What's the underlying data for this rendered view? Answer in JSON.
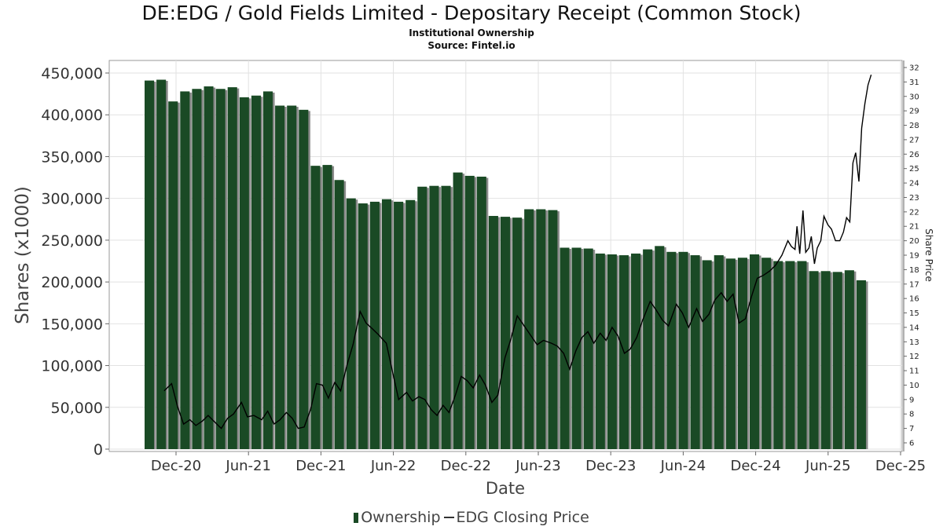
{
  "title": "DE:EDG / Gold Fields Limited - Depositary Receipt (Common Stock)",
  "subtitle": "Institutional Ownership",
  "source": "Source: Fintel.io",
  "legend": {
    "bars": "Ownership",
    "line": "EDG Closing Price"
  },
  "colors": {
    "bar": "#1a4a25",
    "bar_shadow": "#8a8a8a",
    "line": "#000000",
    "grid": "#e2e2e2"
  },
  "chart_data": {
    "type": "bar",
    "xlabel": "Date",
    "ylabel": "Shares (x1000)",
    "y2label": "Share Price",
    "ylim": [
      0,
      470000
    ],
    "y2lim": [
      5.6,
      32.4
    ],
    "yticks": [
      0,
      50000,
      100000,
      150000,
      200000,
      250000,
      300000,
      350000,
      400000,
      450000
    ],
    "ytick_labels": [
      "0",
      "50,000",
      "100,000",
      "150,000",
      "200,000",
      "250,000",
      "300,000",
      "350,000",
      "400,000",
      "450,000"
    ],
    "y2ticks": [
      6,
      7,
      8,
      9,
      10,
      11,
      12,
      13,
      14,
      15,
      16,
      17,
      18,
      19,
      20,
      21,
      22,
      23,
      24,
      25,
      26,
      27,
      28,
      29,
      30,
      31,
      32
    ],
    "xticks": [
      "Dec-20",
      "Jun-21",
      "Dec-21",
      "Jun-22",
      "Dec-22",
      "Jun-23",
      "Dec-23",
      "Jun-24",
      "Dec-24",
      "Jun-25",
      "Dec-25"
    ],
    "grid": true,
    "legend_position": "bottom",
    "ownership": [
      441000,
      442000,
      416000,
      428000,
      431000,
      434000,
      431000,
      433000,
      421000,
      423000,
      428000,
      411000,
      411000,
      406000,
      339000,
      340000,
      322000,
      300000,
      294000,
      296000,
      299000,
      296000,
      298000,
      314000,
      315000,
      315000,
      331000,
      327000,
      326000,
      279000,
      278000,
      277000,
      287000,
      287000,
      286000,
      241000,
      241000,
      240000,
      234000,
      233000,
      232000,
      234000,
      239000,
      243000,
      236000,
      236000,
      232000,
      226000,
      232000,
      228000,
      229000,
      233000,
      229000,
      225000,
      225000,
      225000,
      213000,
      213000,
      212000,
      214000,
      202000
    ],
    "price": [
      {
        "x": "2020-11-01",
        "y": 9.6
      },
      {
        "x": "2020-11-20",
        "y": 10.1
      },
      {
        "x": "2020-12-05",
        "y": 8.5
      },
      {
        "x": "2020-12-20",
        "y": 7.3
      },
      {
        "x": "2021-01-05",
        "y": 7.6
      },
      {
        "x": "2021-01-20",
        "y": 7.2
      },
      {
        "x": "2021-02-05",
        "y": 7.5
      },
      {
        "x": "2021-02-20",
        "y": 7.9
      },
      {
        "x": "2021-03-10",
        "y": 7.4
      },
      {
        "x": "2021-03-25",
        "y": 7.0
      },
      {
        "x": "2021-04-10",
        "y": 7.7
      },
      {
        "x": "2021-04-25",
        "y": 8.0
      },
      {
        "x": "2021-05-15",
        "y": 8.8
      },
      {
        "x": "2021-05-30",
        "y": 7.8
      },
      {
        "x": "2021-06-15",
        "y": 7.9
      },
      {
        "x": "2021-07-05",
        "y": 7.6
      },
      {
        "x": "2021-07-20",
        "y": 8.2
      },
      {
        "x": "2021-08-05",
        "y": 7.3
      },
      {
        "x": "2021-08-20",
        "y": 7.6
      },
      {
        "x": "2021-09-05",
        "y": 8.1
      },
      {
        "x": "2021-09-20",
        "y": 7.7
      },
      {
        "x": "2021-10-05",
        "y": 7.0
      },
      {
        "x": "2021-10-20",
        "y": 7.1
      },
      {
        "x": "2021-11-05",
        "y": 8.3
      },
      {
        "x": "2021-11-20",
        "y": 10.1
      },
      {
        "x": "2021-12-05",
        "y": 10.0
      },
      {
        "x": "2021-12-20",
        "y": 9.1
      },
      {
        "x": "2022-01-05",
        "y": 10.2
      },
      {
        "x": "2022-01-20",
        "y": 9.6
      },
      {
        "x": "2022-02-05",
        "y": 11.4
      },
      {
        "x": "2022-02-20",
        "y": 12.8
      },
      {
        "x": "2022-03-10",
        "y": 15.1
      },
      {
        "x": "2022-03-25",
        "y": 14.3
      },
      {
        "x": "2022-04-10",
        "y": 13.9
      },
      {
        "x": "2022-04-25",
        "y": 13.5
      },
      {
        "x": "2022-05-15",
        "y": 12.9
      },
      {
        "x": "2022-05-30",
        "y": 11.0
      },
      {
        "x": "2022-06-15",
        "y": 9.0
      },
      {
        "x": "2022-07-05",
        "y": 9.5
      },
      {
        "x": "2022-07-20",
        "y": 8.9
      },
      {
        "x": "2022-08-05",
        "y": 9.2
      },
      {
        "x": "2022-08-20",
        "y": 9.0
      },
      {
        "x": "2022-09-05",
        "y": 8.3
      },
      {
        "x": "2022-09-20",
        "y": 7.9
      },
      {
        "x": "2022-10-05",
        "y": 8.6
      },
      {
        "x": "2022-10-20",
        "y": 8.1
      },
      {
        "x": "2022-11-05",
        "y": 9.3
      },
      {
        "x": "2022-11-20",
        "y": 10.6
      },
      {
        "x": "2022-12-05",
        "y": 10.3
      },
      {
        "x": "2022-12-20",
        "y": 9.8
      },
      {
        "x": "2023-01-05",
        "y": 10.7
      },
      {
        "x": "2023-01-20",
        "y": 10.0
      },
      {
        "x": "2023-02-05",
        "y": 8.8
      },
      {
        "x": "2023-02-20",
        "y": 9.3
      },
      {
        "x": "2023-03-10",
        "y": 11.9
      },
      {
        "x": "2023-03-25",
        "y": 13.2
      },
      {
        "x": "2023-04-10",
        "y": 14.8
      },
      {
        "x": "2023-04-25",
        "y": 14.2
      },
      {
        "x": "2023-05-15",
        "y": 13.4
      },
      {
        "x": "2023-05-30",
        "y": 12.8
      },
      {
        "x": "2023-06-15",
        "y": 13.1
      },
      {
        "x": "2023-07-05",
        "y": 12.9
      },
      {
        "x": "2023-07-20",
        "y": 12.7
      },
      {
        "x": "2023-08-05",
        "y": 12.2
      },
      {
        "x": "2023-08-20",
        "y": 11.1
      },
      {
        "x": "2023-09-05",
        "y": 12.4
      },
      {
        "x": "2023-09-20",
        "y": 13.3
      },
      {
        "x": "2023-10-05",
        "y": 13.7
      },
      {
        "x": "2023-10-20",
        "y": 12.9
      },
      {
        "x": "2023-11-05",
        "y": 13.6
      },
      {
        "x": "2023-11-20",
        "y": 13.1
      },
      {
        "x": "2023-12-05",
        "y": 14.0
      },
      {
        "x": "2023-12-20",
        "y": 13.4
      },
      {
        "x": "2024-01-05",
        "y": 12.2
      },
      {
        "x": "2024-01-20",
        "y": 12.5
      },
      {
        "x": "2024-02-05",
        "y": 13.3
      },
      {
        "x": "2024-02-20",
        "y": 14.5
      },
      {
        "x": "2024-03-10",
        "y": 15.8
      },
      {
        "x": "2024-03-25",
        "y": 15.2
      },
      {
        "x": "2024-04-10",
        "y": 14.5
      },
      {
        "x": "2024-04-25",
        "y": 14.1
      },
      {
        "x": "2024-05-15",
        "y": 15.6
      },
      {
        "x": "2024-05-30",
        "y": 15.0
      },
      {
        "x": "2024-06-15",
        "y": 14.0
      },
      {
        "x": "2024-07-05",
        "y": 15.3
      },
      {
        "x": "2024-07-20",
        "y": 14.4
      },
      {
        "x": "2024-08-05",
        "y": 14.9
      },
      {
        "x": "2024-08-20",
        "y": 15.9
      },
      {
        "x": "2024-09-05",
        "y": 16.4
      },
      {
        "x": "2024-09-20",
        "y": 15.8
      },
      {
        "x": "2024-10-05",
        "y": 16.3
      },
      {
        "x": "2024-10-20",
        "y": 14.3
      },
      {
        "x": "2024-11-05",
        "y": 14.6
      },
      {
        "x": "2024-11-20",
        "y": 16.1
      },
      {
        "x": "2024-12-05",
        "y": 17.4
      },
      {
        "x": "2024-12-20",
        "y": 17.6
      },
      {
        "x": "2025-01-05",
        "y": 17.9
      },
      {
        "x": "2025-01-20",
        "y": 18.3
      },
      {
        "x": "2025-02-05",
        "y": 19.0
      },
      {
        "x": "2025-02-20",
        "y": 20.0
      },
      {
        "x": "2025-03-01",
        "y": 19.6
      },
      {
        "x": "2025-03-10",
        "y": 19.4
      },
      {
        "x": "2025-03-15",
        "y": 21.0
      },
      {
        "x": "2025-03-22",
        "y": 19.1
      },
      {
        "x": "2025-03-30",
        "y": 22.1
      },
      {
        "x": "2025-04-06",
        "y": 19.2
      },
      {
        "x": "2025-04-14",
        "y": 19.5
      },
      {
        "x": "2025-04-20",
        "y": 20.3
      },
      {
        "x": "2025-04-28",
        "y": 18.4
      },
      {
        "x": "2025-05-05",
        "y": 19.5
      },
      {
        "x": "2025-05-14",
        "y": 20.0
      },
      {
        "x": "2025-05-22",
        "y": 21.7
      },
      {
        "x": "2025-06-01",
        "y": 21.1
      },
      {
        "x": "2025-06-10",
        "y": 20.8
      },
      {
        "x": "2025-06-20",
        "y": 20.0
      },
      {
        "x": "2025-07-01",
        "y": 20.0
      },
      {
        "x": "2025-07-10",
        "y": 20.6
      },
      {
        "x": "2025-07-18",
        "y": 21.6
      },
      {
        "x": "2025-07-26",
        "y": 21.3
      },
      {
        "x": "2025-08-03",
        "y": 25.4
      },
      {
        "x": "2025-08-10",
        "y": 26.1
      },
      {
        "x": "2025-08-18",
        "y": 24.1
      },
      {
        "x": "2025-08-25",
        "y": 27.8
      },
      {
        "x": "2025-09-02",
        "y": 29.5
      },
      {
        "x": "2025-09-10",
        "y": 30.8
      },
      {
        "x": "2025-09-18",
        "y": 31.5
      }
    ]
  }
}
